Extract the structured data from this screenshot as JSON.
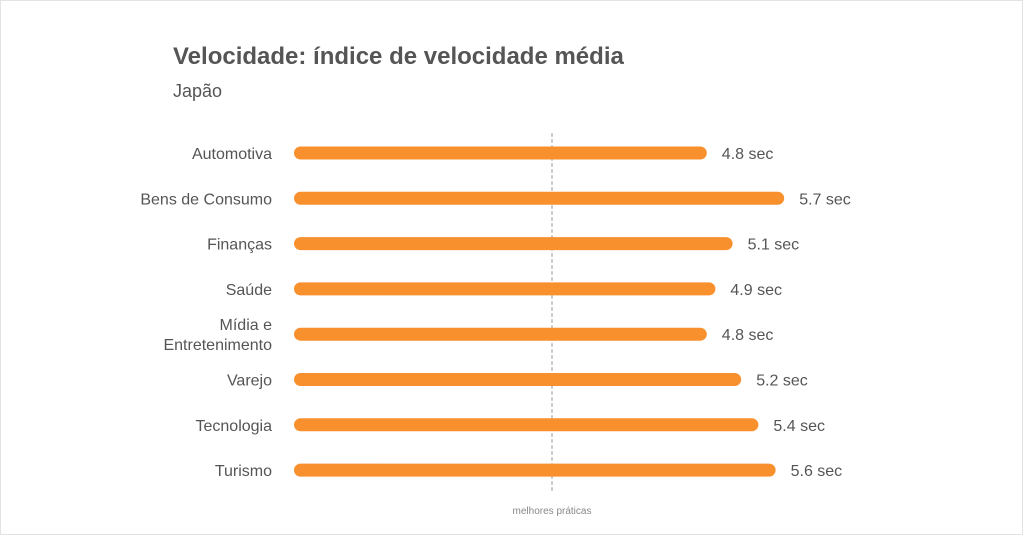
{
  "title": "Velocidade: índice de velocidade média",
  "subtitle": "Japão",
  "colors": {
    "bar": "#F9902E",
    "reference_line": "#c8c8c8",
    "text": "#555555"
  },
  "chart_data": {
    "type": "bar",
    "orientation": "horizontal",
    "title": "Velocidade: índice de velocidade média",
    "subtitle": "Japão",
    "categories": [
      "Automotiva",
      "Bens de Consumo",
      "Finanças",
      "Saúde",
      "Mídia e Entretenimento",
      "Varejo",
      "Tecnologia",
      "Turismo"
    ],
    "category_label_lines": [
      [
        "Automotiva"
      ],
      [
        "Bens de Consumo"
      ],
      [
        "Finanças"
      ],
      [
        "Saúde"
      ],
      [
        "Mídia e",
        "Entretenimento"
      ],
      [
        "Varejo"
      ],
      [
        "Tecnologia"
      ],
      [
        "Turismo"
      ]
    ],
    "values": [
      4.8,
      5.7,
      5.1,
      4.9,
      4.8,
      5.2,
      5.4,
      5.6
    ],
    "value_labels": [
      "4.8 sec",
      "5.7 sec",
      "5.1 sec",
      "4.9 sec",
      "4.8 sec",
      "5.2 sec",
      "5.4 sec",
      "5.6 sec"
    ],
    "unit": "sec",
    "reference_line": {
      "value": 3.0,
      "label": "melhores práticas"
    },
    "xlim": [
      0,
      6
    ],
    "grid": false,
    "legend": false
  }
}
